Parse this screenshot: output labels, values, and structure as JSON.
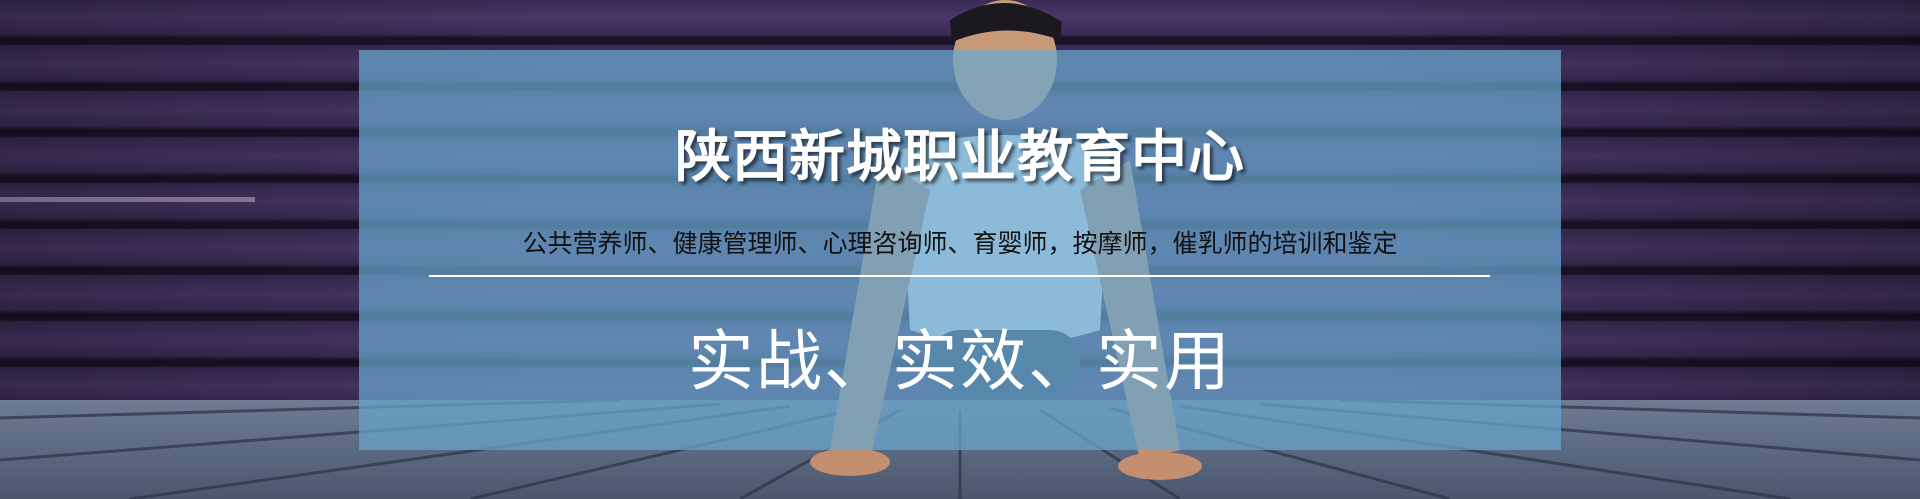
{
  "banner": {
    "title": "陕西新城职业教育中心",
    "subtitle": "公共营养师、健康管理师、心理咨询师、育婴师，按摩师，催乳师的培训和鉴定",
    "slogan": "实战、实效、实用"
  },
  "colors": {
    "panel": "#68a6ce",
    "wall": "#3a2b55",
    "floor": "#5d6b84",
    "title_text": "#ffffff",
    "subtitle_text": "#111111"
  }
}
